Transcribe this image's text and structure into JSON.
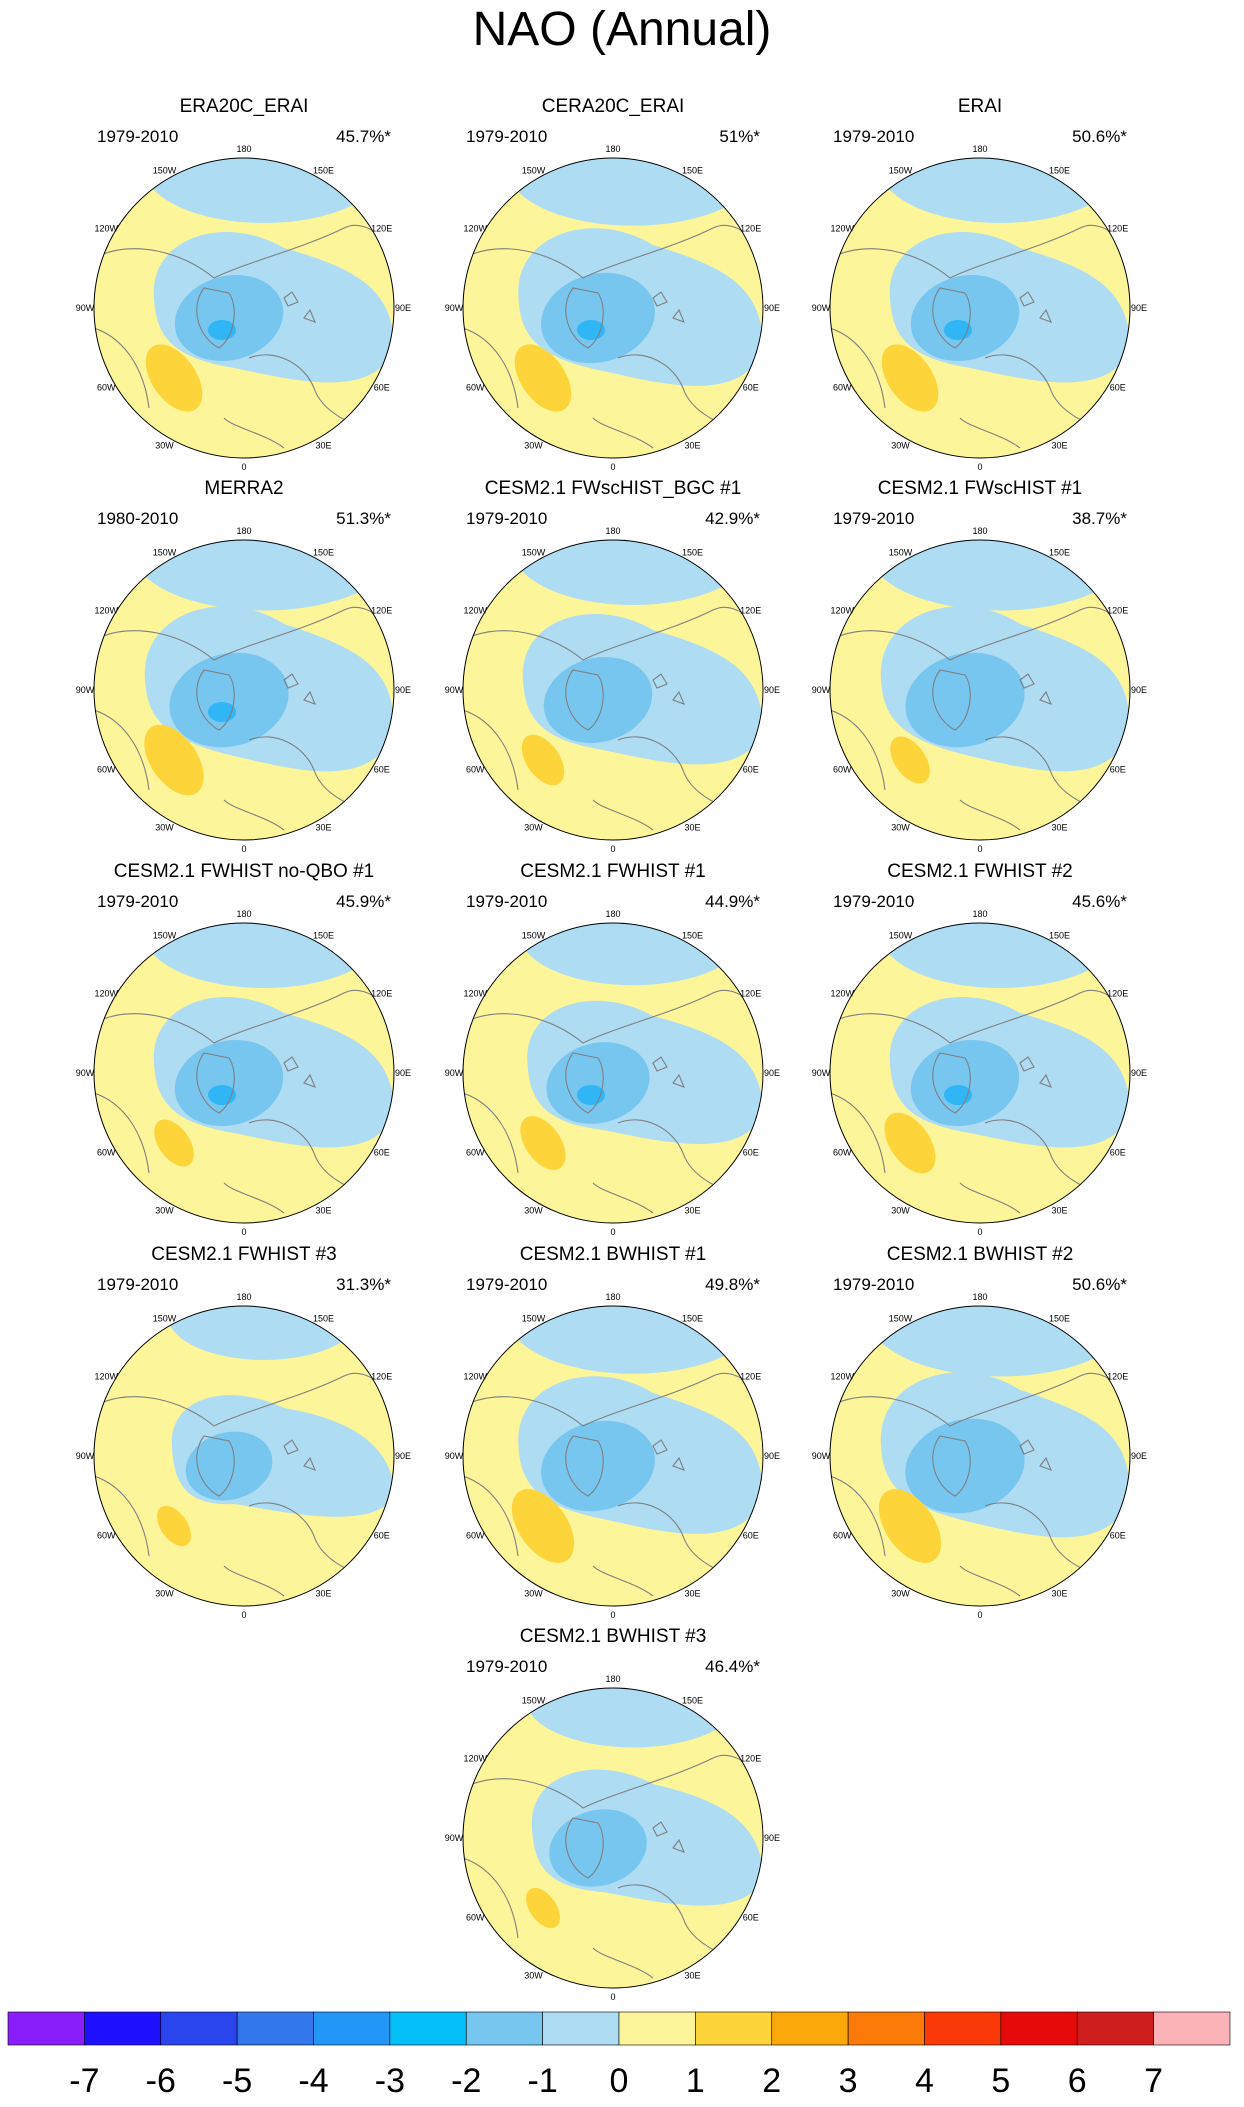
{
  "title": "NAO (Annual)",
  "colors": {
    "coast": "#7f7f7f",
    "ocean_border": "#000000",
    "neg1": "#aedcf3",
    "neg2": "#77c6ef",
    "neg3": "#30b6f5",
    "pos1": "#fdf59a",
    "pos2": "#fdd43a"
  },
  "map_labels": [
    "180",
    "150W",
    "150E",
    "120W",
    "120E",
    "90W",
    "90E",
    "60W",
    "60E",
    "30W",
    "30E",
    "0"
  ],
  "panels": [
    {
      "title": "ERA20C_ERAI",
      "years": "1979-2010",
      "pct": "45.7%*",
      "pos": 1.0,
      "neg": 1.0,
      "iceland": -3
    },
    {
      "title": "CERA20C_ERAI",
      "years": "1979-2010",
      "pct": "51%*",
      "pos": 1.0,
      "neg": 1.05,
      "iceland": -3
    },
    {
      "title": "ERAI",
      "years": "1979-2010",
      "pct": "50.6%*",
      "pos": 1.0,
      "neg": 1.0,
      "iceland": -3
    },
    {
      "title": "MERRA2",
      "years": "1980-2010",
      "pct": "51.3%*",
      "pos": 1.05,
      "neg": 1.1,
      "iceland": -3
    },
    {
      "title": "CESM2.1 FWscHIST_BGC #1",
      "years": "1979-2010",
      "pct": "42.9%*",
      "pos": 0.75,
      "neg": 1.0,
      "iceland": -2
    },
    {
      "title": "CESM2.1 FWscHIST #1",
      "years": "1979-2010",
      "pct": "38.7%*",
      "pos": 0.7,
      "neg": 1.1,
      "iceland": -2
    },
    {
      "title": "CESM2.1 FWHIST no-QBO #1",
      "years": "1979-2010",
      "pct": "45.9%*",
      "pos": 0.7,
      "neg": 1.0,
      "iceland": -3
    },
    {
      "title": "CESM2.1 FWHIST #1",
      "years": "1979-2010",
      "pct": "44.9%*",
      "pos": 0.8,
      "neg": 0.95,
      "iceland": -3
    },
    {
      "title": "CESM2.1 FWHIST #2",
      "years": "1979-2010",
      "pct": "45.6%*",
      "pos": 0.9,
      "neg": 1.0,
      "iceland": -3
    },
    {
      "title": "CESM2.1 FWHIST #3",
      "years": "1979-2010",
      "pct": "31.3%*",
      "pos": 0.6,
      "neg": 0.8,
      "iceland": -2
    },
    {
      "title": "CESM2.1 BWHIST #1",
      "years": "1979-2010",
      "pct": "49.8%*",
      "pos": 1.1,
      "neg": 1.05,
      "iceland": -2
    },
    {
      "title": "CESM2.1 BWHIST #2",
      "years": "1979-2010",
      "pct": "50.6%*",
      "pos": 1.1,
      "neg": 1.1,
      "iceland": -2
    },
    {
      "title": "CESM2.1 BWHIST #3",
      "years": "1979-2010",
      "pct": "46.4%*",
      "pos": 0.6,
      "neg": 0.9,
      "iceland": -2
    }
  ],
  "colorbar": {
    "labels": [
      "-7",
      "-6",
      "-5",
      "-4",
      "-3",
      "-2",
      "-1",
      "0",
      "1",
      "2",
      "3",
      "4",
      "5",
      "6",
      "7"
    ],
    "colors": [
      "#8a1efb",
      "#1e10ff",
      "#2b45ee",
      "#3377ec",
      "#2196f7",
      "#04bff8",
      "#77c6ef",
      "#aedcf3",
      "#fdf59a",
      "#fdd43a",
      "#fba80a",
      "#fb7a08",
      "#fb3808",
      "#e70a0a",
      "#ce1e1e",
      "#fbb3b8"
    ]
  }
}
